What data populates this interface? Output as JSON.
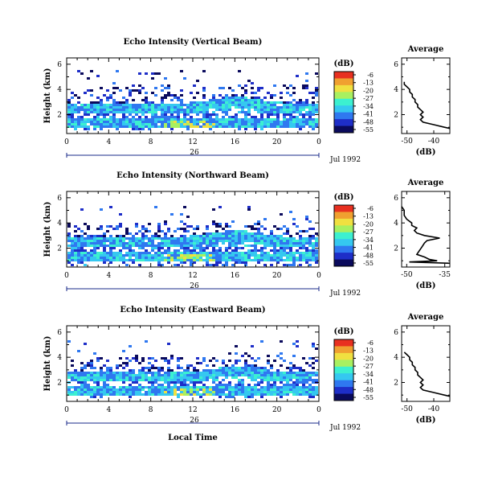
{
  "chart_data": {
    "type": "heatmap",
    "common": {
      "xlabel": "Local Time",
      "date_label": "Jul 1992",
      "day_label": "26",
      "xticks": [
        "0",
        "4",
        "8",
        "12",
        "16",
        "20",
        "0"
      ],
      "xlim_hours": [
        0,
        24
      ],
      "ylabel": "Height (km)",
      "yticks": [
        "2",
        "4",
        "6"
      ],
      "ylim_km": [
        0.5,
        6.5
      ],
      "colorbar_unit": "(dB)",
      "colorbar_ticks": [
        "-6",
        "-13",
        "-20",
        "-27",
        "-34",
        "-41",
        "-48",
        "-55"
      ],
      "colorbar_range_db": [
        -55,
        -6
      ],
      "avg_title": "Average",
      "avg_xlabel": "(dB)",
      "colors": [
        "#0a0a5c",
        "#1e2ec8",
        "#2f78f0",
        "#35c8f0",
        "#3cf0d0",
        "#a8f060",
        "#f0e040",
        "#f0a030",
        "#e83020"
      ]
    },
    "panels": [
      {
        "title": "Echo Intensity (Vertical Beam)",
        "cloud": {
          "dense_top_km": 3.0,
          "sparse_top_km": 4.4,
          "bottom_km": 0.8,
          "peak_db": -20
        },
        "avg_xticks": [
          "-50",
          "-40"
        ],
        "avg_xlim": [
          -52,
          -34
        ],
        "average_profile": {
          "height_km": [
            0.9,
            1.0,
            1.2,
            1.4,
            1.6,
            1.8,
            2.0,
            2.2,
            2.4,
            2.6,
            2.8,
            3.0,
            3.2,
            3.4,
            3.6,
            3.8,
            4.0,
            4.2,
            4.4,
            4.6
          ],
          "db": [
            -34,
            -36,
            -40,
            -44,
            -45,
            -44,
            -45,
            -44,
            -45,
            -46,
            -46,
            -47,
            -47,
            -48,
            -48,
            -49,
            -49,
            -50,
            -51,
            -51
          ]
        }
      },
      {
        "title": "Echo Intensity (Northward Beam)",
        "cloud": {
          "dense_top_km": 3.0,
          "sparse_top_km": 4.2,
          "bottom_km": 0.7,
          "peak_db": -20
        },
        "avg_xticks": [
          "-50",
          "-35"
        ],
        "avg_xlim": [
          -52,
          -33
        ],
        "average_profile": {
          "height_km": [
            0.8,
            0.9,
            1.0,
            1.1,
            1.3,
            1.5,
            1.8,
            2.1,
            2.4,
            2.6,
            2.8,
            3.0,
            3.2,
            3.4,
            3.6,
            3.8,
            4.0,
            4.3,
            4.6,
            5.0,
            5.3
          ],
          "db": [
            -33,
            -49,
            -38,
            -41,
            -43,
            -46,
            -45,
            -44,
            -43,
            -42,
            -37,
            -43,
            -46,
            -47,
            -46,
            -48,
            -48,
            -50,
            -51,
            -51,
            -52
          ]
        }
      },
      {
        "title": "Echo Intensity (Eastward Beam)",
        "cloud": {
          "dense_top_km": 2.9,
          "sparse_top_km": 4.2,
          "bottom_km": 0.8,
          "peak_db": -20
        },
        "avg_xticks": [
          "-50",
          "-40"
        ],
        "avg_xlim": [
          -52,
          -34
        ],
        "average_profile": {
          "height_km": [
            0.9,
            1.0,
            1.2,
            1.4,
            1.6,
            1.8,
            2.0,
            2.2,
            2.4,
            2.6,
            2.8,
            3.0,
            3.2,
            3.4,
            3.6,
            3.8,
            4.0,
            4.2,
            4.4
          ],
          "db": [
            -34,
            -36,
            -40,
            -44,
            -45,
            -44,
            -45,
            -44,
            -45,
            -46,
            -46,
            -47,
            -47,
            -48,
            -48,
            -49,
            -49,
            -50,
            -51
          ]
        }
      }
    ]
  }
}
